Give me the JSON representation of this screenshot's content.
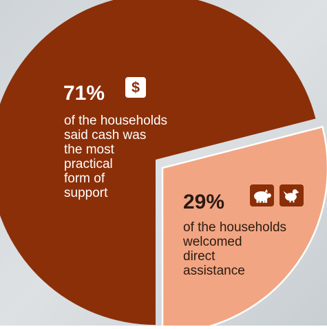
{
  "colors": {
    "background": "#d6dade",
    "major_slice": "#8b2f08",
    "minor_slice": "#f2a582",
    "icon_fill": "#ffffff",
    "major_text": "#ffffff",
    "minor_text": "#2b1a12"
  },
  "chart_data": {
    "type": "pie",
    "title": "",
    "slices": [
      {
        "value": 71,
        "value_label": "71%",
        "icons": [
          "dollar-icon"
        ],
        "description_lines": [
          "of the households",
          "said cash was",
          "the most",
          "practical",
          "form of",
          "support"
        ],
        "color": "#8b2f08"
      },
      {
        "value": 29,
        "value_label": "29%",
        "icons": [
          "pig-icon",
          "chicken-icon"
        ],
        "description_lines": [
          "of the households",
          "welcomed",
          "direct",
          "assistance"
        ],
        "color": "#f2a582"
      }
    ]
  }
}
